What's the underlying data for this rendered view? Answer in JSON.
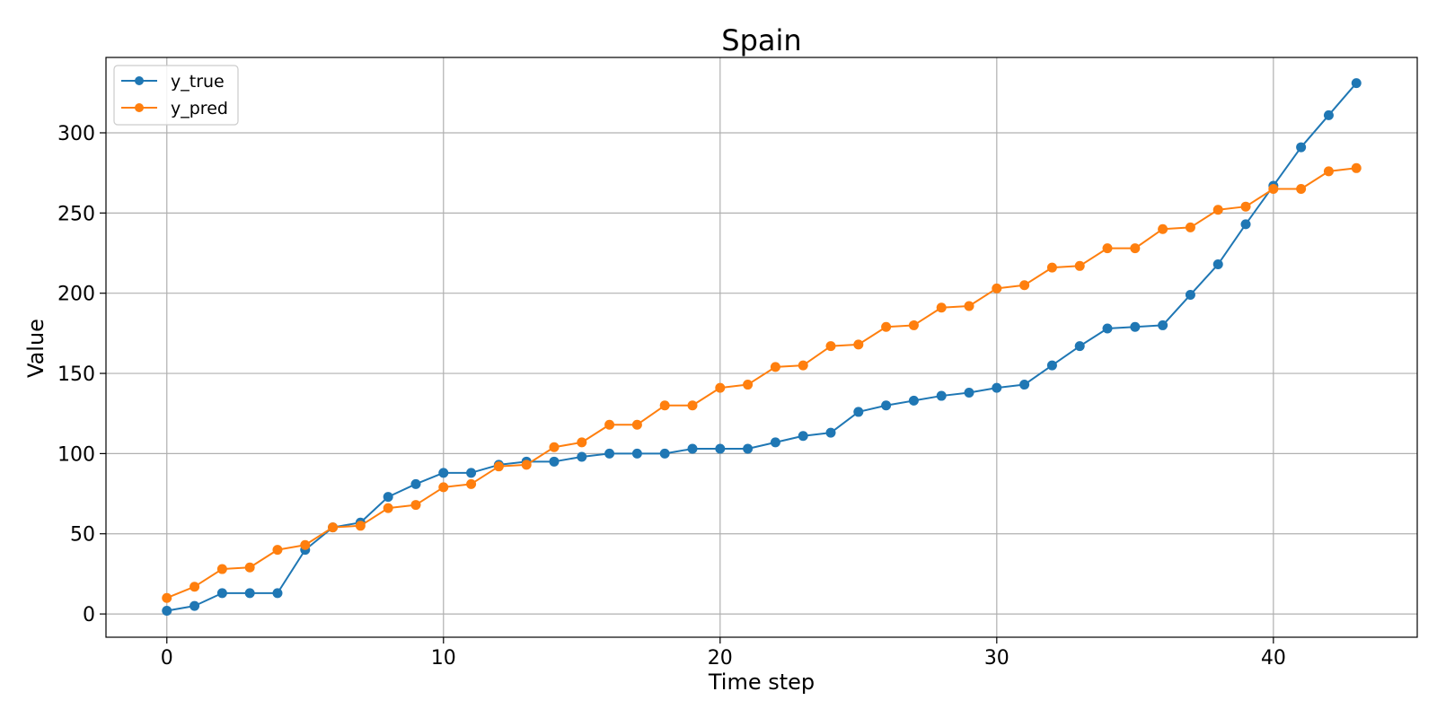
{
  "chart_data": {
    "type": "line",
    "title": "Spain",
    "xlabel": "Time step",
    "ylabel": "Value",
    "xlim": [
      -2.2,
      45.2
    ],
    "ylim": [
      -14.5,
      347
    ],
    "xticks": [
      0,
      10,
      20,
      30,
      40
    ],
    "yticks": [
      0,
      50,
      100,
      150,
      200,
      250,
      300
    ],
    "grid": true,
    "legend_position": "upper left",
    "x": [
      0,
      1,
      2,
      3,
      4,
      5,
      6,
      7,
      8,
      9,
      10,
      11,
      12,
      13,
      14,
      15,
      16,
      17,
      18,
      19,
      20,
      21,
      22,
      23,
      24,
      25,
      26,
      27,
      28,
      29,
      30,
      31,
      32,
      33,
      34,
      35,
      36,
      37,
      38,
      39,
      40,
      41,
      42,
      43
    ],
    "series": [
      {
        "name": "y_true",
        "color": "#1f77b4",
        "values": [
          2,
          5,
          13,
          13,
          13,
          40,
          54,
          57,
          73,
          81,
          88,
          88,
          93,
          95,
          95,
          98,
          100,
          100,
          100,
          103,
          103,
          103,
          107,
          111,
          113,
          126,
          130,
          133,
          136,
          138,
          141,
          143,
          155,
          167,
          178,
          179,
          180,
          199,
          218,
          243,
          267,
          291,
          311,
          331
        ]
      },
      {
        "name": "y_pred",
        "color": "#ff7f0e",
        "values": [
          10,
          17,
          28,
          29,
          40,
          43,
          54,
          55,
          66,
          68,
          79,
          81,
          92,
          93,
          104,
          107,
          118,
          118,
          130,
          130,
          141,
          143,
          154,
          155,
          167,
          168,
          179,
          180,
          191,
          192,
          203,
          205,
          216,
          217,
          228,
          228,
          240,
          241,
          252,
          254,
          265,
          265,
          276,
          278
        ]
      }
    ]
  }
}
